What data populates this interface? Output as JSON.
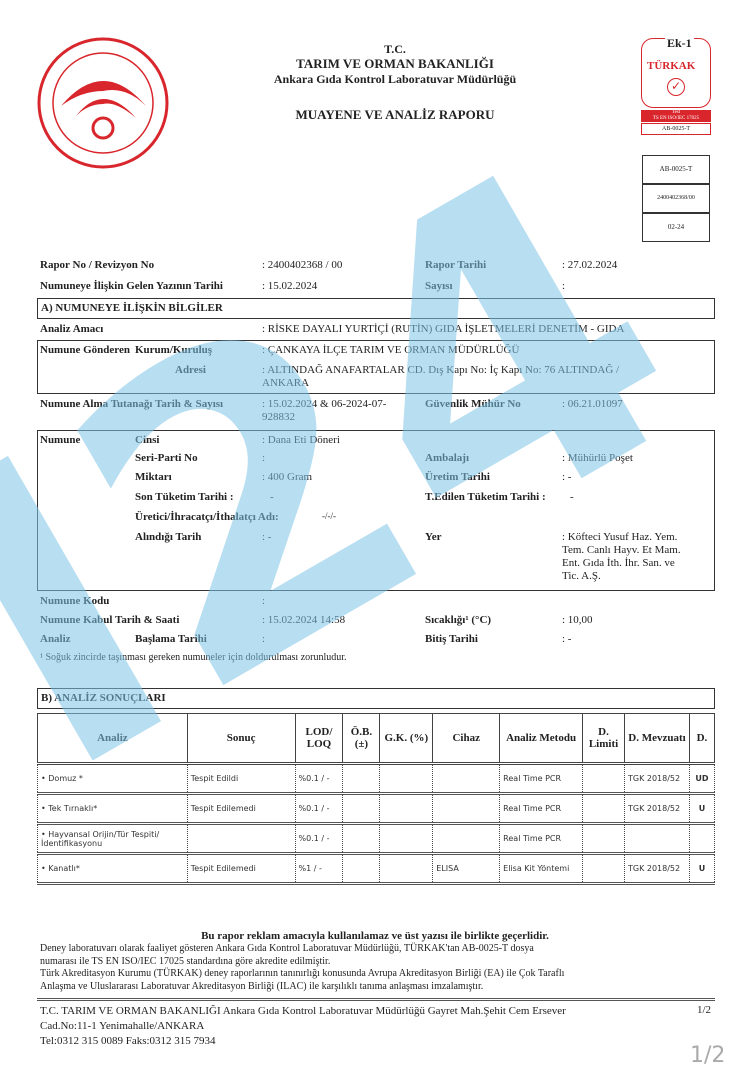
{
  "header": {
    "line1": "T.C.",
    "line2": "TARIM VE ORMAN BAKANLIĞI",
    "line3": "Ankara Gıda Kontrol Laboratuvar Müdürlüğü",
    "title": "MUAYENE VE ANALİZ RAPORU"
  },
  "badge": {
    "ek": "Ek-1",
    "brand": "TÜRKAK",
    "test": "Test",
    "standard": "TS EN ISO/IEC 17025",
    "code": "AB-0025-T",
    "box1": "AB-0025-T",
    "box2": "2400402368/00",
    "box3": "02-24"
  },
  "colors": {
    "logo": "#d8262c",
    "watermark": "#7ec3e6"
  },
  "watermark": "I24",
  "report": {
    "rapor_no_label": "Rapor No / Revizyon No",
    "rapor_no": ": 2400402368 / 00",
    "rapor_tarihi_label": "Rapor Tarihi",
    "rapor_tarihi": ": 27.02.2024",
    "yazi_label": "Numuneye İlişkin Gelen Yazının Tarihi",
    "yazi": ": 15.02.2024",
    "sayisi_label": "Sayısı",
    "sayisi": ":"
  },
  "section_a": {
    "title": "A) NUMUNEYE İLİŞKİN BİLGİLER",
    "amac_label": "Analiz Amacı",
    "amac": ": RİSKE DAYALI YURTİÇİ (RUTİN) GIDA İŞLETMELERİ DENETİM - GIDA",
    "gonderen_label": "Numune Gönderen",
    "kurum_label": "Kurum/Kuruluş",
    "kurum": ": ÇANKAYA İLÇE TARIM VE ORMAN MÜDÜRLÜĞÜ",
    "adres_label": "Adresi",
    "adres1": ": ALTINDAĞ ANAFARTALAR CD. Dış Kapı No: İç Kapı No: 76 ALTINDAĞ /",
    "adres2": "ANKARA",
    "tutanak_label": "Numune Alma Tutanağı Tarih & Sayısı",
    "tutanak1": ": 15.02.2024 & 06-2024-07-",
    "tutanak2": "928832",
    "muhur_label": "Güvenlik Mühür No",
    "muhur": ": 06.21.01097",
    "numune_label": "Numune",
    "cinsi_label": "Cinsi",
    "cinsi": ":  Dana Eti Döneri",
    "seri_label": "Seri-Parti No",
    "seri": ":",
    "ambalaj_label": "Ambalajı",
    "ambalaj": ": Mühürlü Poşet",
    "miktar_label": "Miktarı",
    "miktar": ": 400 Gram",
    "uretim_label": "Üretim Tarihi",
    "uretim": ": -",
    "skt_label": "Son Tüketim Tarihi :",
    "skt": "-",
    "tedilen_label": "T.Edilen Tüketim Tarihi :",
    "tedilen": "-",
    "uretici_label": "Üretici/İhracatçı/İthalatçı Adı:",
    "uretici": "-/-/-",
    "alindigi_label": "Alındığı  Tarih",
    "alindigi": ": -",
    "yer_label": "Yer",
    "yer": [
      ": Köfteci Yusuf Haz. Yem.",
      "Tem. Canlı Hayv. Et Mam.",
      "Ent. Gıda İth. İhr. San. ve",
      "Tic. A.Ş."
    ],
    "kodu_label": "Numune Kodu",
    "kodu": ":",
    "kabul_label": "Numune Kabul Tarih & Saati",
    "kabul": ": 15.02.2024 14:58",
    "sicaklik_label": "Sıcaklığı¹ (°C)",
    "sicaklik": ": 10,00",
    "analiz_label": "Analiz",
    "baslama_label": "Başlama Tarihi",
    "baslama": ":",
    "bitis_label": "Bitiş Tarihi",
    "bitis": ": -",
    "footnote": "¹ Soğuk zincirde taşınması gereken numuneler için doldurulması zorunludur."
  },
  "section_b": {
    "title": "B) ANALİZ SONUÇLARI",
    "headers": [
      "Analiz",
      "Sonuç",
      "LOD/ LOQ",
      "Ö.B. (±)",
      "G.K. (%)",
      "Cihaz",
      "Analiz Metodu",
      "D. Limiti",
      "D. Mevzuatı",
      "D."
    ],
    "rows": [
      [
        "• Domuz *",
        "Tespit Edildi",
        "%0.1 / -",
        "",
        "",
        "",
        "Real Time PCR",
        "",
        "TGK 2018/52",
        "UD"
      ],
      [
        "• Tek Tırnaklı*",
        "Tespit Edilemedi",
        "%0.1 / -",
        "",
        "",
        "",
        "Real Time PCR",
        "",
        "TGK 2018/52",
        "U"
      ],
      [
        "• Hayvansal Orijin/Tür Tespiti/İdentifikasyonu",
        "",
        "%0.1 / -",
        "",
        "",
        "",
        "Real Time PCR",
        "",
        "",
        ""
      ],
      [
        "    • Kanatlı*",
        "Tespit Edilemedi",
        "%1 / -",
        "",
        "",
        "ELISA",
        "Elisa Kit Yöntemi",
        "",
        "TGK 2018/52",
        "U"
      ]
    ]
  },
  "footer": {
    "notice": "Bu rapor reklam amacıyla kullanılamaz ve üst yazısı ile birlikte geçerlidir.",
    "p1a": "Deney laboratuvarı olarak faaliyet gösteren Ankara Gıda Kontrol Laboratuvar Müdürlüğü, TÜRKAK'tan AB-0025-T dosya",
    "p1b": "numarası ile TS EN ISO/IEC 17025 standardına göre akredite edilmiştir.",
    "p2a": "Türk Akreditasyon Kurumu (TÜRKAK) deney raporlarının tanınırlığı konusunda Avrupa Akreditasyon Birliği (EA) ile Çok Taraflı",
    "p2b": "Anlaşma ve Uluslararası Laboratuvar Akreditasyon Birliği (ILAC) ile karşılıklı tanıma anlaşması imzalamıştır.",
    "addr1": "T.C. TARIM VE ORMAN BAKANLIĞI Ankara Gıda Kontrol Laboratuvar Müdürlüğü Gayret Mah.Şehit Cem Ersever",
    "addr2": "Cad.No:11-1 Yenimahalle/ANKARA",
    "tel": "Tel:0312 315 0089    Faks:0312 315 7934",
    "page": "1/2",
    "page_big": "1/2"
  }
}
